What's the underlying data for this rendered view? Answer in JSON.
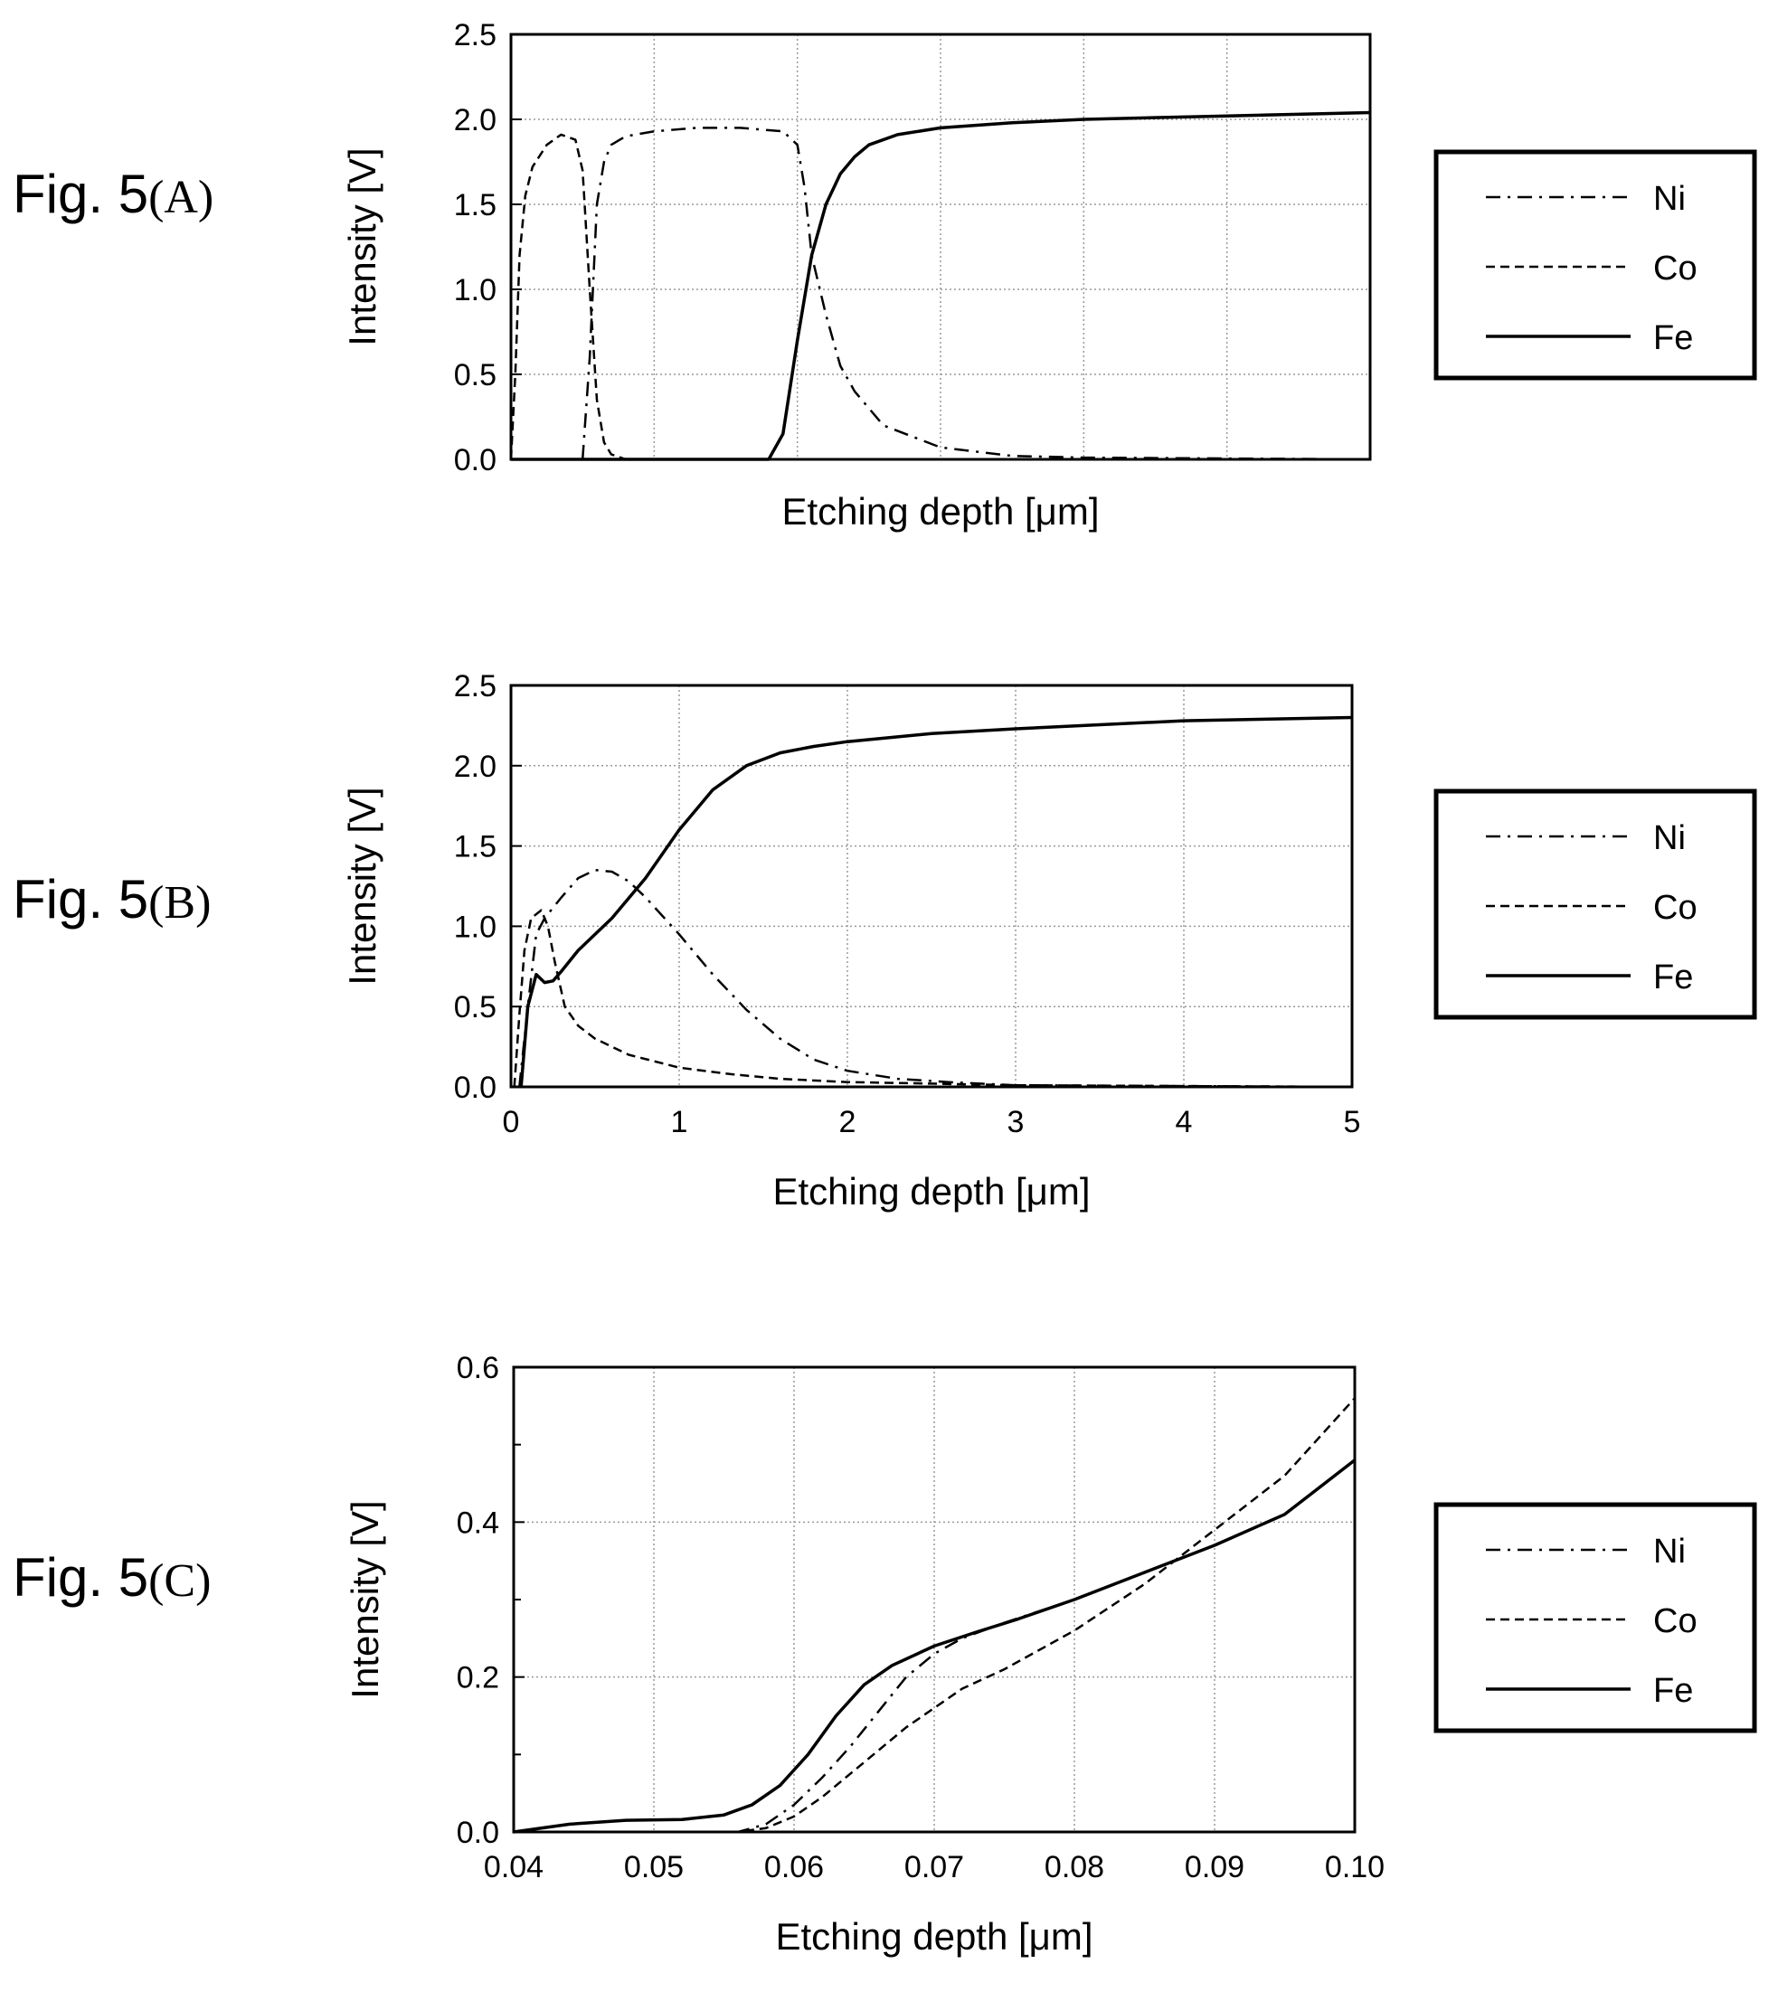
{
  "panels": [
    {
      "label_main": "Fig. 5",
      "label_paren": "(A)",
      "chart_data": {
        "type": "line",
        "xlabel": "Etching depth [μm]",
        "ylabel": "Intensity [V]",
        "xlim": [
          0,
          6
        ],
        "ylim": [
          0,
          2.5
        ],
        "xticks": [],
        "yticks": [
          0,
          0.5,
          1.0,
          1.5,
          2.0,
          2.5
        ],
        "ytick_labels": [
          "0.0",
          "0.5",
          "1.0",
          "1.5",
          "2.0",
          "2.5"
        ],
        "grid": true,
        "legend": "right",
        "series": [
          {
            "name": "Ni",
            "style": "dashdot",
            "x": [
              0.5,
              0.55,
              0.6,
              0.65,
              0.7,
              0.8,
              1.0,
              1.3,
              1.6,
              1.9,
              2.0,
              2.05,
              2.1,
              2.2,
              2.3,
              2.4,
              2.6,
              3.0,
              3.5,
              4.0,
              6.0
            ],
            "y": [
              0.0,
              0.6,
              1.5,
              1.75,
              1.85,
              1.9,
              1.93,
              1.95,
              1.95,
              1.93,
              1.85,
              1.6,
              1.2,
              0.85,
              0.55,
              0.4,
              0.2,
              0.07,
              0.02,
              0.01,
              0.0
            ]
          },
          {
            "name": "Co",
            "style": "dashed",
            "x": [
              0.0,
              0.03,
              0.06,
              0.1,
              0.15,
              0.25,
              0.35,
              0.45,
              0.5,
              0.55,
              0.6,
              0.65,
              0.7,
              0.8,
              1.0,
              6.0
            ],
            "y": [
              0.0,
              0.5,
              1.2,
              1.55,
              1.72,
              1.85,
              1.91,
              1.88,
              1.7,
              1.0,
              0.35,
              0.1,
              0.03,
              0.0,
              0.0,
              0.0
            ]
          },
          {
            "name": "Fe",
            "style": "solid",
            "x": [
              0.0,
              1.8,
              1.9,
              2.0,
              2.1,
              2.2,
              2.3,
              2.4,
              2.5,
              2.7,
              3.0,
              3.5,
              4.0,
              5.0,
              6.0
            ],
            "y": [
              0.0,
              0.0,
              0.15,
              0.7,
              1.2,
              1.5,
              1.68,
              1.78,
              1.85,
              1.91,
              1.95,
              1.98,
              2.0,
              2.02,
              2.04
            ]
          }
        ]
      }
    },
    {
      "label_main": "Fig. 5",
      "label_paren": "(B)",
      "chart_data": {
        "type": "line",
        "xlabel": "Etching depth [μm]",
        "ylabel": "Intensity [V]",
        "xlim": [
          0,
          5
        ],
        "ylim": [
          0,
          2.5
        ],
        "xticks": [
          0,
          1,
          2,
          3,
          4,
          5
        ],
        "xtick_labels": [
          "0",
          "1",
          "2",
          "3",
          "4",
          "5"
        ],
        "yticks": [
          0,
          0.5,
          1.0,
          1.5,
          2.0,
          2.5
        ],
        "ytick_labels": [
          "0.0",
          "0.5",
          "1.0",
          "1.5",
          "2.0",
          "2.5"
        ],
        "grid": true,
        "legend": "right",
        "series": [
          {
            "name": "Ni",
            "style": "dashdot",
            "x": [
              0.05,
              0.1,
              0.15,
              0.2,
              0.3,
              0.4,
              0.5,
              0.6,
              0.7,
              0.8,
              1.0,
              1.2,
              1.4,
              1.6,
              1.8,
              2.0,
              2.3,
              2.6,
              3.0,
              5.0
            ],
            "y": [
              0.0,
              0.5,
              0.95,
              1.05,
              1.18,
              1.3,
              1.35,
              1.34,
              1.28,
              1.18,
              0.95,
              0.7,
              0.48,
              0.3,
              0.17,
              0.1,
              0.05,
              0.03,
              0.01,
              0.0
            ]
          },
          {
            "name": "Co",
            "style": "dashed",
            "x": [
              0.02,
              0.05,
              0.08,
              0.12,
              0.18,
              0.22,
              0.26,
              0.32,
              0.4,
              0.5,
              0.7,
              1.0,
              1.3,
              1.6,
              2.0,
              2.5,
              3.0,
              5.0
            ],
            "y": [
              0.0,
              0.45,
              0.85,
              1.05,
              1.1,
              1.0,
              0.78,
              0.5,
              0.38,
              0.3,
              0.2,
              0.12,
              0.08,
              0.05,
              0.03,
              0.02,
              0.01,
              0.0
            ]
          },
          {
            "name": "Fe",
            "style": "solid",
            "x": [
              0.06,
              0.1,
              0.15,
              0.2,
              0.25,
              0.3,
              0.4,
              0.6,
              0.8,
              1.0,
              1.2,
              1.4,
              1.6,
              1.8,
              2.0,
              2.5,
              3.0,
              4.0,
              5.0
            ],
            "y": [
              0.0,
              0.5,
              0.7,
              0.65,
              0.66,
              0.72,
              0.85,
              1.05,
              1.3,
              1.6,
              1.85,
              2.0,
              2.08,
              2.12,
              2.15,
              2.2,
              2.23,
              2.28,
              2.3
            ]
          }
        ]
      }
    },
    {
      "label_main": "Fig. 5",
      "label_paren": "(C)",
      "chart_data": {
        "type": "line",
        "xlabel": "Etching depth [μm]",
        "ylabel": "Intensity [V]",
        "xlim": [
          0.04,
          0.1
        ],
        "ylim": [
          0,
          0.6
        ],
        "xticks": [
          0.04,
          0.05,
          0.06,
          0.07,
          0.08,
          0.09,
          0.1
        ],
        "xtick_labels": [
          "0.04",
          "0.05",
          "0.06",
          "0.07",
          "0.08",
          "0.09",
          "0.10"
        ],
        "yticks": [
          0,
          0.2,
          0.4,
          0.6
        ],
        "ytick_labels": [
          "0.0",
          "0.2",
          "0.4",
          "0.6"
        ],
        "minor_yticks": [
          0.1,
          0.3,
          0.5
        ],
        "grid": true,
        "legend": "right",
        "series": [
          {
            "name": "Ni",
            "style": "dashdot",
            "x": [
              0.04,
              0.056,
              0.058,
              0.06,
              0.062,
              0.064,
              0.066,
              0.068,
              0.07,
              0.072,
              0.075,
              0.08,
              0.085,
              0.09,
              0.095,
              0.1
            ],
            "y": [
              0.0,
              0.0,
              0.01,
              0.035,
              0.07,
              0.11,
              0.155,
              0.2,
              0.23,
              0.25,
              0.27,
              0.3,
              0.335,
              0.37,
              0.41,
              0.48
            ]
          },
          {
            "name": "Co",
            "style": "dashed",
            "x": [
              0.04,
              0.056,
              0.058,
              0.06,
              0.062,
              0.064,
              0.066,
              0.068,
              0.07,
              0.072,
              0.075,
              0.08,
              0.085,
              0.09,
              0.095,
              0.1
            ],
            "y": [
              0.0,
              0.0,
              0.005,
              0.02,
              0.045,
              0.075,
              0.105,
              0.135,
              0.16,
              0.185,
              0.21,
              0.26,
              0.32,
              0.39,
              0.46,
              0.56
            ]
          },
          {
            "name": "Fe",
            "style": "solid",
            "x": [
              0.04,
              0.044,
              0.048,
              0.052,
              0.055,
              0.057,
              0.059,
              0.061,
              0.063,
              0.065,
              0.067,
              0.07,
              0.073,
              0.076,
              0.08,
              0.085,
              0.09,
              0.095,
              0.1
            ],
            "y": [
              0.0,
              0.01,
              0.015,
              0.016,
              0.022,
              0.035,
              0.06,
              0.1,
              0.15,
              0.19,
              0.215,
              0.24,
              0.258,
              0.275,
              0.3,
              0.335,
              0.37,
              0.41,
              0.48
            ]
          }
        ]
      }
    }
  ]
}
